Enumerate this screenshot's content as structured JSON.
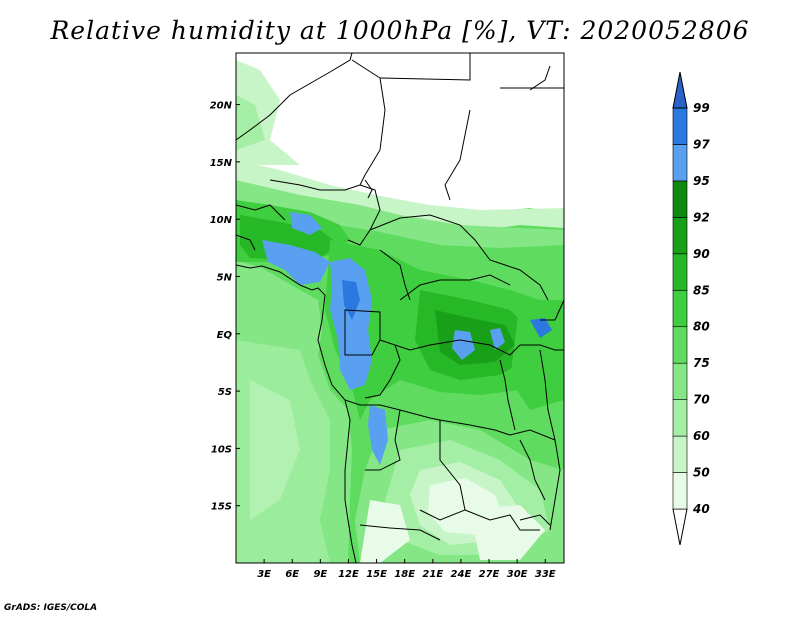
{
  "title": "Relative humidity at 1000hPa [%], VT: 2020052806",
  "credit": "GrADS: IGES/COLA",
  "map": {
    "lat_labels": [
      "20N",
      "15N",
      "10N",
      "5N",
      "EQ",
      "5S",
      "10S",
      "15S"
    ],
    "lat_values": [
      20,
      15,
      10,
      5,
      0,
      -5,
      -10,
      -15
    ],
    "lon_labels": [
      "3E",
      "6E",
      "9E",
      "12E",
      "15E",
      "18E",
      "21E",
      "24E",
      "27E",
      "30E",
      "33E"
    ],
    "lon_values": [
      3,
      6,
      9,
      12,
      15,
      18,
      21,
      24,
      27,
      30,
      33
    ],
    "lon_range": [
      0,
      35
    ],
    "lat_range": [
      -20,
      24.5
    ]
  },
  "colorbar": {
    "levels": [
      "40",
      "50",
      "60",
      "70",
      "75",
      "80",
      "85",
      "90",
      "92",
      "95",
      "97",
      "99"
    ],
    "colors": [
      "#ffffff",
      "#e8fbe8",
      "#c8f5c8",
      "#a5eea5",
      "#84e684",
      "#5fdc5f",
      "#3fce3f",
      "#27b827",
      "#18a018",
      "#0e8a0e",
      "#5aa0f0",
      "#2a78e0",
      "#2a62c8"
    ]
  }
}
